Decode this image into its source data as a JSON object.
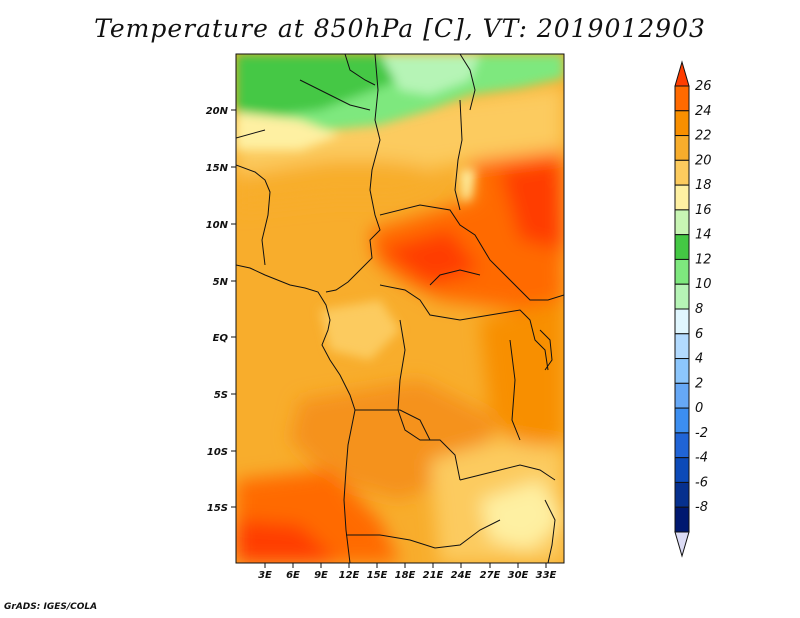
{
  "title": "Temperature at 850hPa [C], VT: 2019012903",
  "credit": "GrADS: IGES/COLA",
  "map": {
    "region": "Central and Southern Africa",
    "lon_range": [
      0,
      35
    ],
    "lat_range": [
      -20,
      24.5
    ],
    "lon_ticks": [
      "3E",
      "6E",
      "9E",
      "12E",
      "15E",
      "18E",
      "21E",
      "24E",
      "27E",
      "30E",
      "33E"
    ],
    "lat_ticks": [
      "20N",
      "15N",
      "10N",
      "5N",
      "EQ",
      "5S",
      "10S",
      "15S"
    ]
  },
  "colorbar": {
    "levels": [
      "26",
      "24",
      "22",
      "20",
      "18",
      "16",
      "14",
      "12",
      "10",
      "8",
      "6",
      "4",
      "2",
      "0",
      "-2",
      "-4",
      "-6",
      "-8"
    ],
    "colors": [
      "#ff3d00",
      "#ff6a00",
      "#f88f00",
      "#f8ad2c",
      "#fccb5e",
      "#fef0a2",
      "#c8f5b4",
      "#44c844",
      "#7ee87e",
      "#b6f4b6",
      "#e0f6fe",
      "#b2dafe",
      "#8cc6fc",
      "#66a8f6",
      "#3c8ef0",
      "#2064d6",
      "#0c4ab8",
      "#06308e",
      "#001870",
      "#dcdcf5"
    ]
  }
}
